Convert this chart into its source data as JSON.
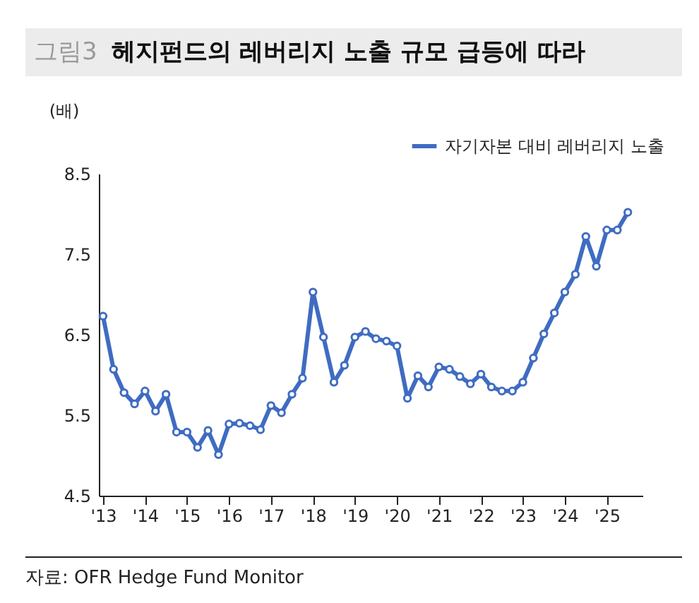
{
  "chart_data": {
    "type": "line",
    "title": "그림3 헤지펀드의 레버리지 노출 규모 급등에 따라",
    "ylabel": "(배)",
    "annotations": [
      "자료: OFR Hedge Fund Monitor"
    ],
    "x": [
      2013,
      2013.25,
      2013.5,
      2013.75,
      2014,
      2014.25,
      2014.5,
      2014.75,
      2015,
      2015.25,
      2015.5,
      2015.75,
      2016,
      2016.25,
      2016.5,
      2016.75,
      2017,
      2017.25,
      2017.5,
      2017.75,
      2018,
      2018.25,
      2018.5,
      2018.75,
      2019,
      2019.25,
      2019.5,
      2019.75,
      2020,
      2020.25,
      2020.5,
      2020.75,
      2021,
      2021.25,
      2021.5,
      2021.75,
      2022,
      2022.25,
      2022.5,
      2022.75,
      2023,
      2023.25,
      2023.5,
      2023.75,
      2024,
      2024.25,
      2024.5,
      2024.75,
      2025,
      2025.25,
      2025.5
    ],
    "series": [
      {
        "name": "자기자본 대비 레버리지 노출",
        "color": "#3f6cc2",
        "values": [
          6.73,
          6.07,
          5.78,
          5.64,
          5.8,
          5.55,
          5.76,
          5.29,
          5.29,
          5.1,
          5.31,
          5.01,
          5.39,
          5.4,
          5.37,
          5.32,
          5.62,
          5.53,
          5.76,
          5.96,
          7.03,
          6.47,
          5.91,
          6.12,
          6.47,
          6.54,
          6.45,
          6.42,
          6.36,
          5.71,
          5.99,
          5.85,
          6.1,
          6.07,
          5.98,
          5.89,
          6.01,
          5.85,
          5.8,
          5.8,
          5.91,
          6.21,
          6.51,
          6.77,
          7.03,
          7.25,
          7.72,
          7.35,
          7.8,
          7.8,
          8.02
        ]
      }
    ],
    "xlim": [
      2012.9,
      2025.85
    ],
    "xticks": [
      {
        "value": 2013,
        "label": "'13"
      },
      {
        "value": 2014,
        "label": "'14"
      },
      {
        "value": 2015,
        "label": "'15"
      },
      {
        "value": 2016,
        "label": "'16"
      },
      {
        "value": 2017,
        "label": "'17"
      },
      {
        "value": 2018,
        "label": "'18"
      },
      {
        "value": 2019,
        "label": "'19"
      },
      {
        "value": 2020,
        "label": "'20"
      },
      {
        "value": 2021,
        "label": "'21"
      },
      {
        "value": 2022,
        "label": "'22"
      },
      {
        "value": 2023,
        "label": "'23"
      },
      {
        "value": 2024,
        "label": "'24"
      },
      {
        "value": 2025,
        "label": "'25"
      }
    ],
    "ylim": [
      4.5,
      8.5
    ],
    "yticks": [
      4.5,
      5.5,
      6.5,
      7.5,
      8.5
    ],
    "grid": false,
    "legend": "top right",
    "marker": "circle",
    "line_style": "solid"
  }
}
